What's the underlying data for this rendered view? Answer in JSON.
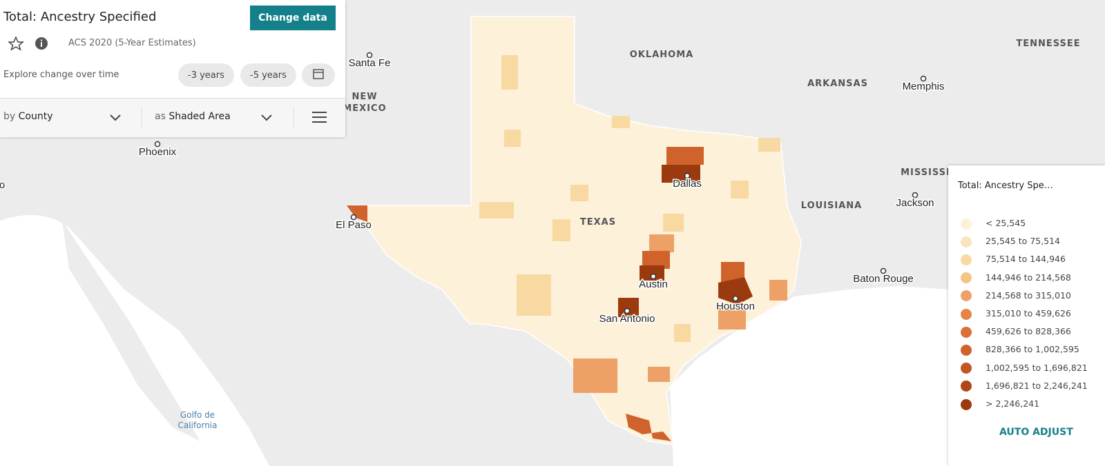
{
  "panel": {
    "title": "Total: Ancestry Specified",
    "change_button": "Change data",
    "source": "ACS 2020 (5-Year Estimates)",
    "explore_label": "Explore change over time",
    "time_buttons": [
      "-3 years",
      "-5 years"
    ],
    "geo_prefix": "by",
    "geo_value": "County",
    "display_prefix": "as",
    "display_value": "Shaded Area"
  },
  "map": {
    "labels": [
      "OKLAHOMA",
      "TENNESSEE",
      "Santa Fe",
      "NEW",
      "MEXICO",
      "ARKANSAS",
      "Memphis",
      "Phoenix",
      "Dallas",
      "MISSISSI",
      "Jackson",
      "LOUISIANA",
      "El Paso",
      "TEXAS",
      "Austin",
      "Baton Rouge",
      "Houston",
      "San Antonio",
      "Golfo de",
      "California",
      "o"
    ]
  },
  "legend": {
    "title": "Total: Ancestry Spe…",
    "items": [
      {
        "label": "< 25,545",
        "color": "#fdf1d9"
      },
      {
        "label": "25,545 to 75,514",
        "color": "#fbe4bc"
      },
      {
        "label": "75,514 to 144,946",
        "color": "#f8d9a2"
      },
      {
        "label": "144,946 to 214,568",
        "color": "#f3c587"
      },
      {
        "label": "214,568 to 315,010",
        "color": "#eda166"
      },
      {
        "label": "315,010 to 459,626",
        "color": "#e58447"
      },
      {
        "label": "459,626 to 828,366",
        "color": "#db6f36"
      },
      {
        "label": "828,366 to 1,002,595",
        "color": "#d0622c"
      },
      {
        "label": "1,002,595 to 1,696,821",
        "color": "#c25522"
      },
      {
        "label": "1,696,821 to 2,246,241",
        "color": "#af4716"
      },
      {
        "label": "> 2,246,241",
        "color": "#9b3a0e"
      }
    ],
    "auto_adjust": "AUTO ADJUST"
  }
}
